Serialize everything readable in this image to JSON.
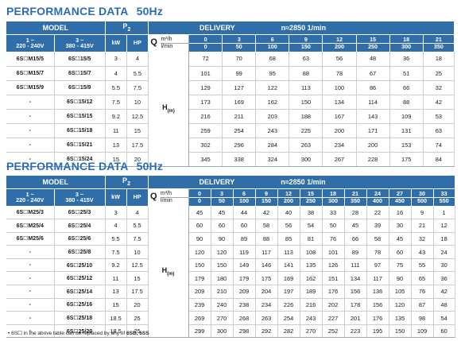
{
  "section_title": "PERFORMANCE DATA",
  "frequency": "50Hz",
  "headers": {
    "model": "MODEL",
    "p2": "P",
    "p2_sub": "2",
    "delivery": "DELIVERY",
    "speed": "n≈2850 1/min",
    "col_1ph": [
      "1 ~",
      "220 - 240V"
    ],
    "col_3ph": [
      "3 ~",
      "380 - 415V"
    ],
    "kw": "kW",
    "hp": "HP",
    "q": "Q",
    "unit_m3h": "m³/h",
    "unit_lmin": "l/min",
    "h": "H",
    "h_unit": "(m)"
  },
  "table1": {
    "q_m3h": [
      "0",
      "3",
      "6",
      "9",
      "12",
      "15",
      "18",
      "21"
    ],
    "q_lmin": [
      "0",
      "50",
      "100",
      "150",
      "200",
      "250",
      "300",
      "350"
    ],
    "rows": [
      {
        "m1": "6S☐M15/5",
        "m3": "6S☐15/5",
        "kw": "3",
        "hp": "4",
        "h": [
          "72",
          "70",
          "68",
          "63",
          "56",
          "48",
          "36",
          "18"
        ]
      },
      {
        "m1": "6S☐M15/7",
        "m3": "6S☐15/7",
        "kw": "4",
        "hp": "5.5",
        "h": [
          "101",
          "99",
          "95",
          "88",
          "78",
          "67",
          "51",
          "25"
        ]
      },
      {
        "m1": "6S☐M15/9",
        "m3": "6S☐15/9",
        "kw": "5.5",
        "hp": "7.5",
        "h": [
          "129",
          "127",
          "122",
          "113",
          "100",
          "86",
          "66",
          "32"
        ]
      },
      {
        "m1": "-",
        "m3": "6S☐15/12",
        "kw": "7.5",
        "hp": "10",
        "h": [
          "173",
          "169",
          "162",
          "150",
          "134",
          "114",
          "88",
          "42"
        ]
      },
      {
        "m1": "-",
        "m3": "6S☐15/15",
        "kw": "9.2",
        "hp": "12.5",
        "h": [
          "216",
          "211",
          "203",
          "188",
          "167",
          "143",
          "109",
          "53"
        ]
      },
      {
        "m1": "-",
        "m3": "6S☐15/18",
        "kw": "11",
        "hp": "15",
        "h": [
          "259",
          "254",
          "243",
          "225",
          "200",
          "171",
          "131",
          "63"
        ]
      },
      {
        "m1": "-",
        "m3": "6S☐15/21",
        "kw": "13",
        "hp": "17.5",
        "h": [
          "302",
          "296",
          "284",
          "263",
          "234",
          "200",
          "153",
          "74"
        ]
      },
      {
        "m1": "-",
        "m3": "6S☐15/24",
        "kw": "15",
        "hp": "20",
        "h": [
          "345",
          "338",
          "324",
          "300",
          "267",
          "228",
          "175",
          "84"
        ]
      }
    ]
  },
  "table2": {
    "q_m3h": [
      "0",
      "3",
      "6",
      "9",
      "12",
      "15",
      "18",
      "21",
      "24",
      "27",
      "30",
      "33"
    ],
    "q_lmin": [
      "0",
      "50",
      "100",
      "150",
      "200",
      "250",
      "300",
      "350",
      "400",
      "450",
      "500",
      "550"
    ],
    "rows": [
      {
        "m1": "6S☐M25/3",
        "m3": "6S☐25/3",
        "kw": "3",
        "hp": "4",
        "h": [
          "45",
          "45",
          "44",
          "42",
          "40",
          "38",
          "33",
          "28",
          "22",
          "16",
          "9",
          "1"
        ]
      },
      {
        "m1": "6S☐M25/4",
        "m3": "6S☐25/4",
        "kw": "4",
        "hp": "5.5",
        "h": [
          "60",
          "60",
          "60",
          "58",
          "56",
          "54",
          "50",
          "45",
          "39",
          "30",
          "21",
          "12"
        ]
      },
      {
        "m1": "6S☐M25/6",
        "m3": "6S☐25/6",
        "kw": "5.5",
        "hp": "7.5",
        "h": [
          "90",
          "90",
          "89",
          "88",
          "85",
          "81",
          "76",
          "66",
          "58",
          "45",
          "32",
          "18"
        ]
      },
      {
        "m1": "-",
        "m3": "6S☐25/8",
        "kw": "7.5",
        "hp": "10",
        "h": [
          "120",
          "120",
          "119",
          "117",
          "113",
          "108",
          "101",
          "89",
          "78",
          "60",
          "43",
          "24"
        ]
      },
      {
        "m1": "-",
        "m3": "6S☐25/10",
        "kw": "9.2",
        "hp": "12.5",
        "h": [
          "150",
          "150",
          "149",
          "146",
          "141",
          "135",
          "126",
          "111",
          "97",
          "75",
          "55",
          "30"
        ]
      },
      {
        "m1": "-",
        "m3": "6S☐25/12",
        "kw": "11",
        "hp": "15",
        "h": [
          "179",
          "180",
          "179",
          "175",
          "169",
          "162",
          "151",
          "134",
          "117",
          "90",
          "65",
          "36"
        ]
      },
      {
        "m1": "-",
        "m3": "6S☐25/14",
        "kw": "13",
        "hp": "17.5",
        "h": [
          "209",
          "210",
          "209",
          "204",
          "197",
          "189",
          "176",
          "156",
          "136",
          "105",
          "76",
          "42"
        ]
      },
      {
        "m1": "-",
        "m3": "6S☐25/16",
        "kw": "15",
        "hp": "20",
        "h": [
          "239",
          "240",
          "238",
          "234",
          "226",
          "216",
          "202",
          "178",
          "156",
          "120",
          "87",
          "48"
        ]
      },
      {
        "m1": "-",
        "m3": "6S☐25/18",
        "kw": "18.5",
        "hp": "25",
        "h": [
          "269",
          "270",
          "268",
          "263",
          "254",
          "243",
          "227",
          "201",
          "176",
          "135",
          "98",
          "54"
        ]
      },
      {
        "m1": "-",
        "m3": "6S☐25/20",
        "kw": "18.5",
        "hp": "25",
        "h": [
          "299",
          "300",
          "298",
          "292",
          "282",
          "270",
          "252",
          "223",
          "195",
          "150",
          "109",
          "60"
        ]
      }
    ]
  },
  "footnote": {
    "prefix": "• 6S☐",
    "text": " in the above table can be replaced by any of ",
    "options": "6SD, 6SS"
  }
}
